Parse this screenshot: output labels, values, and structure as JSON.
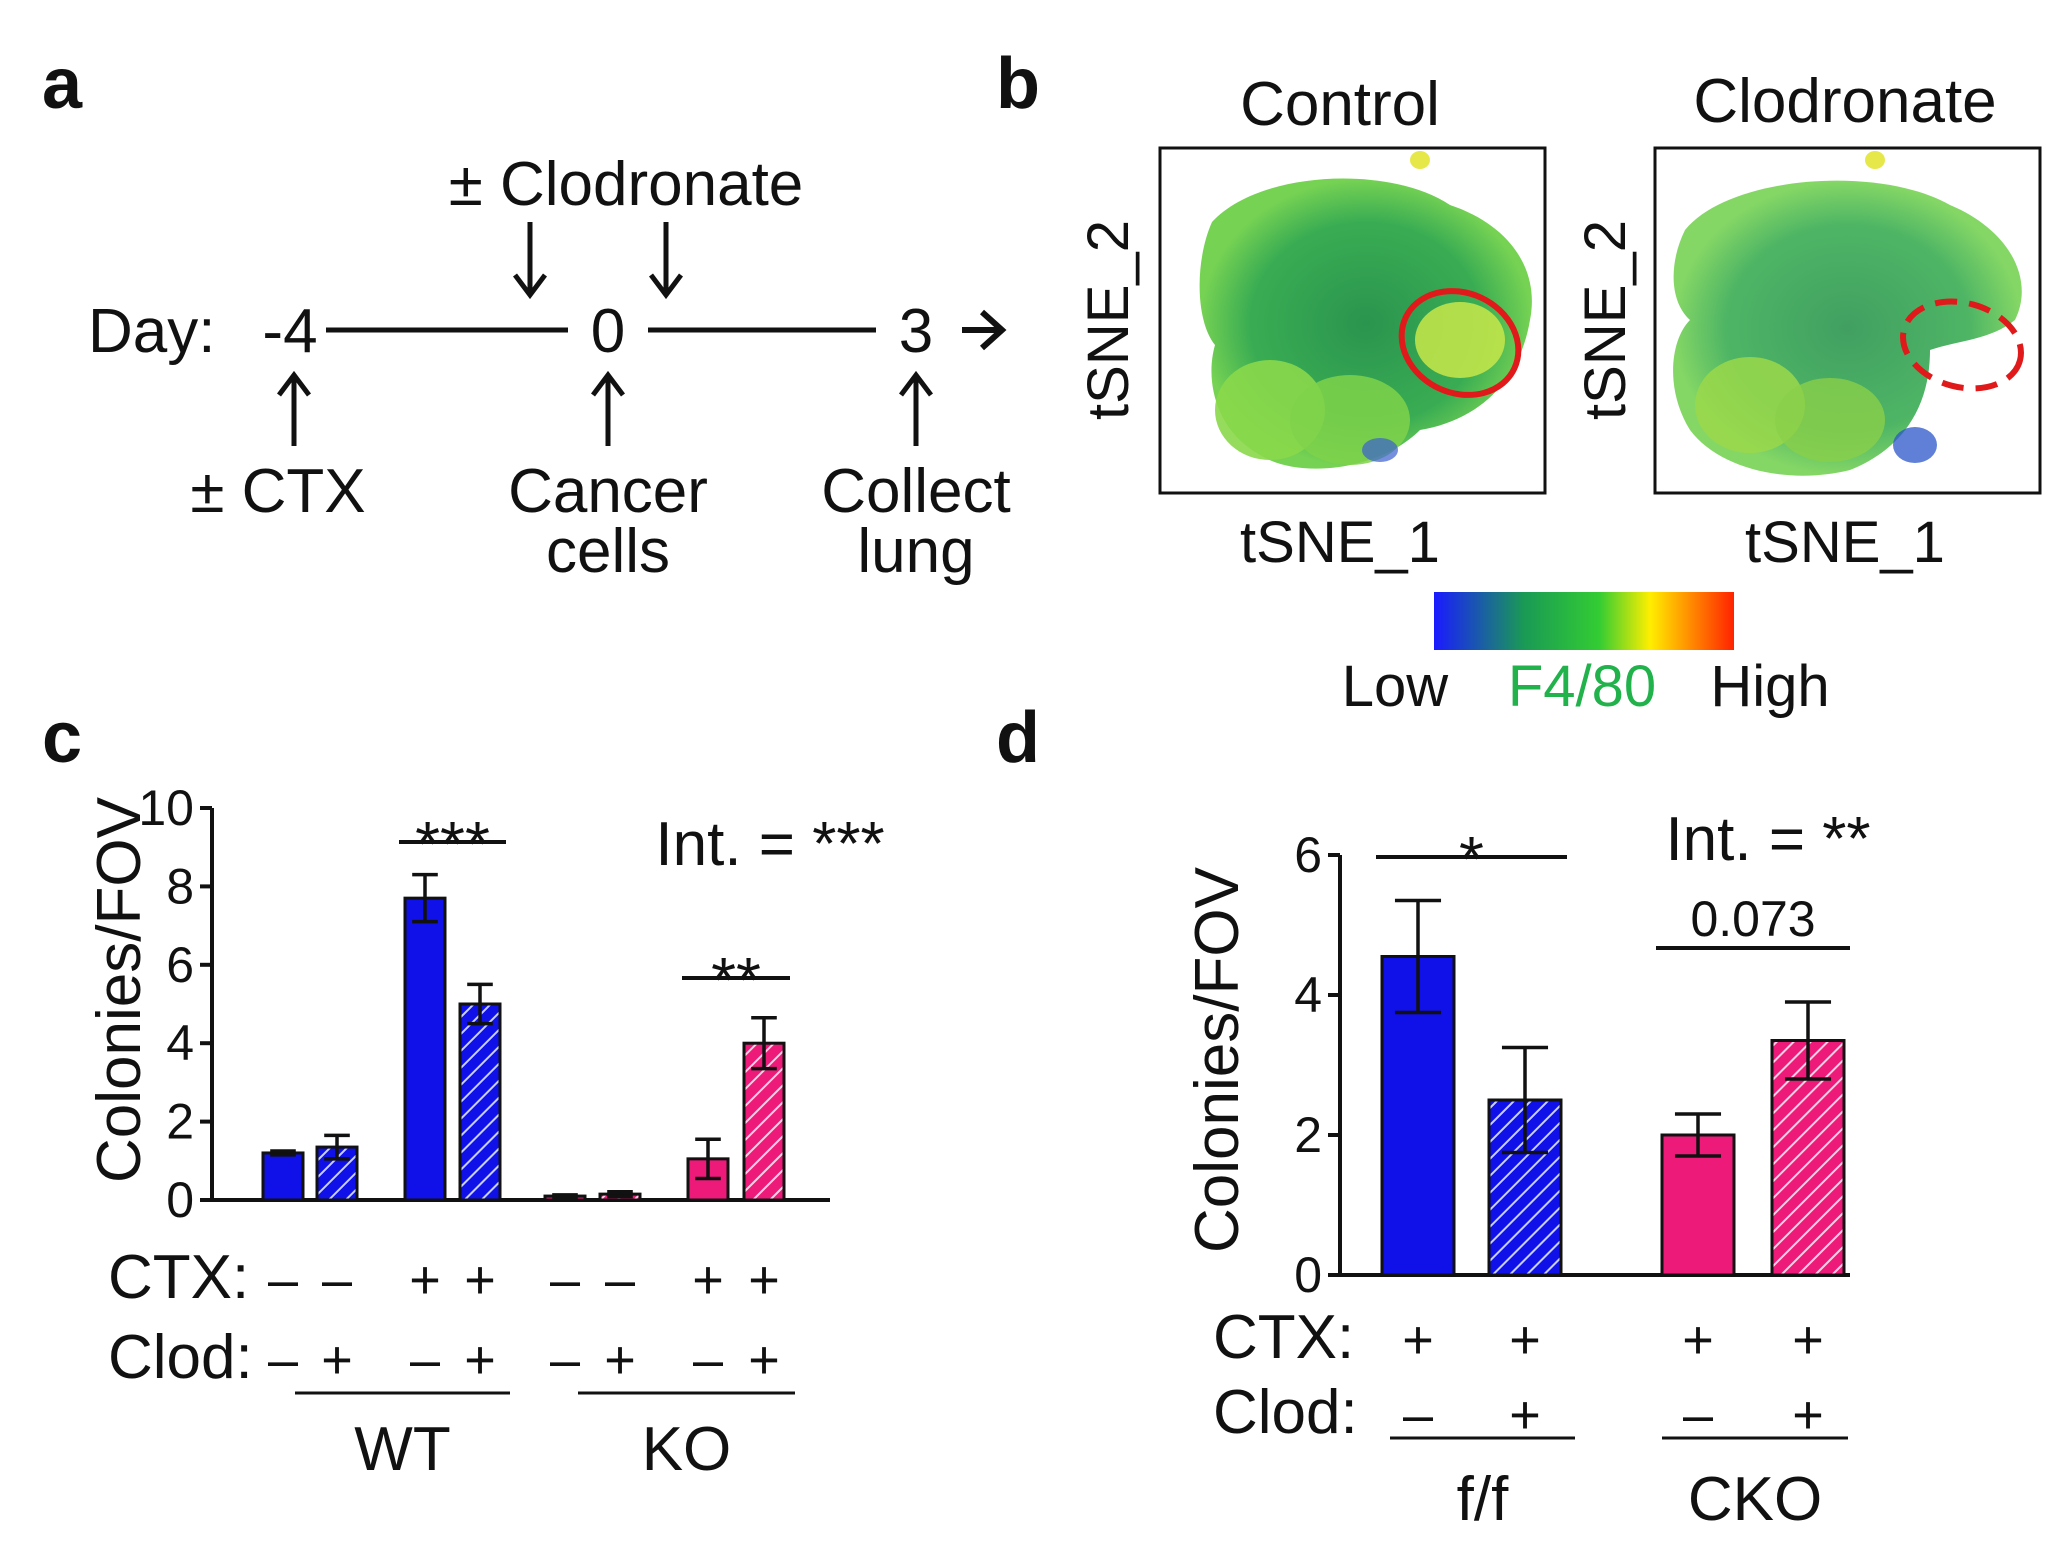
{
  "panel_labels": [
    "a",
    "b",
    "c",
    "d"
  ],
  "panel_a": {
    "top_label": "± Clodronate",
    "day_label": "Day:",
    "days": [
      "-4",
      "0",
      "3"
    ],
    "bottom_labels": [
      {
        "line1": "± CTX",
        "line2": ""
      },
      {
        "line1": "Cancer",
        "line2": "cells"
      },
      {
        "line1": "Collect",
        "line2": "lung"
      }
    ]
  },
  "panel_b": {
    "plots": [
      {
        "title": "Control",
        "xlabel": "tSNE_1",
        "ylabel": "tSNE_2",
        "gate": "solid"
      },
      {
        "title": "Clodronate",
        "xlabel": "tSNE_1",
        "ylabel": "tSNE_2",
        "gate": "dashed"
      }
    ],
    "legend": {
      "low": "Low",
      "marker": "F4/80",
      "high": "High",
      "marker_color": "#22b24c"
    },
    "colormap": [
      "#1a1aff",
      "#1a9a55",
      "#33cc33",
      "#ffee00",
      "#ff2200"
    ]
  },
  "chart_data": [
    {
      "panel": "c",
      "type": "bar",
      "ylabel": "Colonies/FOV",
      "ylim": [
        0,
        10
      ],
      "yticks": [
        0,
        2,
        4,
        6,
        8,
        10
      ],
      "bars": [
        {
          "value": 1.2,
          "err": 0.05,
          "color": "#1010e8",
          "hatched": false
        },
        {
          "value": 1.35,
          "err": 0.3,
          "color": "#1010e8",
          "hatched": true
        },
        {
          "value": 7.7,
          "err": 0.6,
          "color": "#1010e8",
          "hatched": false
        },
        {
          "value": 5.0,
          "err": 0.5,
          "color": "#1010e8",
          "hatched": true
        },
        {
          "value": 0.1,
          "err": 0.03,
          "color": "#ee1a7a",
          "hatched": false
        },
        {
          "value": 0.15,
          "err": 0.06,
          "color": "#ee1a7a",
          "hatched": true
        },
        {
          "value": 1.05,
          "err": 0.5,
          "color": "#ee1a7a",
          "hatched": false
        },
        {
          "value": 4.0,
          "err": 0.65,
          "color": "#ee1a7a",
          "hatched": true
        }
      ],
      "row_labels": [
        "CTX:",
        "Clod:"
      ],
      "ctx": [
        "–",
        "–",
        "+",
        "+",
        "–",
        "–",
        "+",
        "+"
      ],
      "clod": [
        "–",
        "+",
        "–",
        "+",
        "–",
        "+",
        "–",
        "+"
      ],
      "groups": [
        "WT",
        "KO"
      ],
      "brackets": [
        {
          "from": 2,
          "to": 3,
          "label": "***"
        },
        {
          "from": 6,
          "to": 7,
          "label": "**"
        }
      ],
      "interaction": "Int. = ***"
    },
    {
      "panel": "d",
      "type": "bar",
      "ylabel": "Colonies/FOV",
      "ylim": [
        0,
        6
      ],
      "yticks": [
        0,
        2,
        4,
        6
      ],
      "bars": [
        {
          "value": 4.55,
          "err": 0.8,
          "color": "#1010e8",
          "hatched": false
        },
        {
          "value": 2.5,
          "err": 0.75,
          "color": "#1010e8",
          "hatched": true
        },
        {
          "value": 2.0,
          "err": 0.3,
          "color": "#ee1a7a",
          "hatched": false
        },
        {
          "value": 3.35,
          "err": 0.55,
          "color": "#ee1a7a",
          "hatched": true
        }
      ],
      "row_labels": [
        "CTX:",
        "Clod:"
      ],
      "ctx": [
        "+",
        "+",
        "+",
        "+"
      ],
      "clod": [
        "–",
        "+",
        "–",
        "+"
      ],
      "groups": [
        "f/f",
        "CKO"
      ],
      "brackets": [
        {
          "from": 0,
          "to": 1,
          "label": "*"
        },
        {
          "from": 2,
          "to": 3,
          "label": "0.073"
        }
      ],
      "interaction": "Int. = **"
    }
  ]
}
